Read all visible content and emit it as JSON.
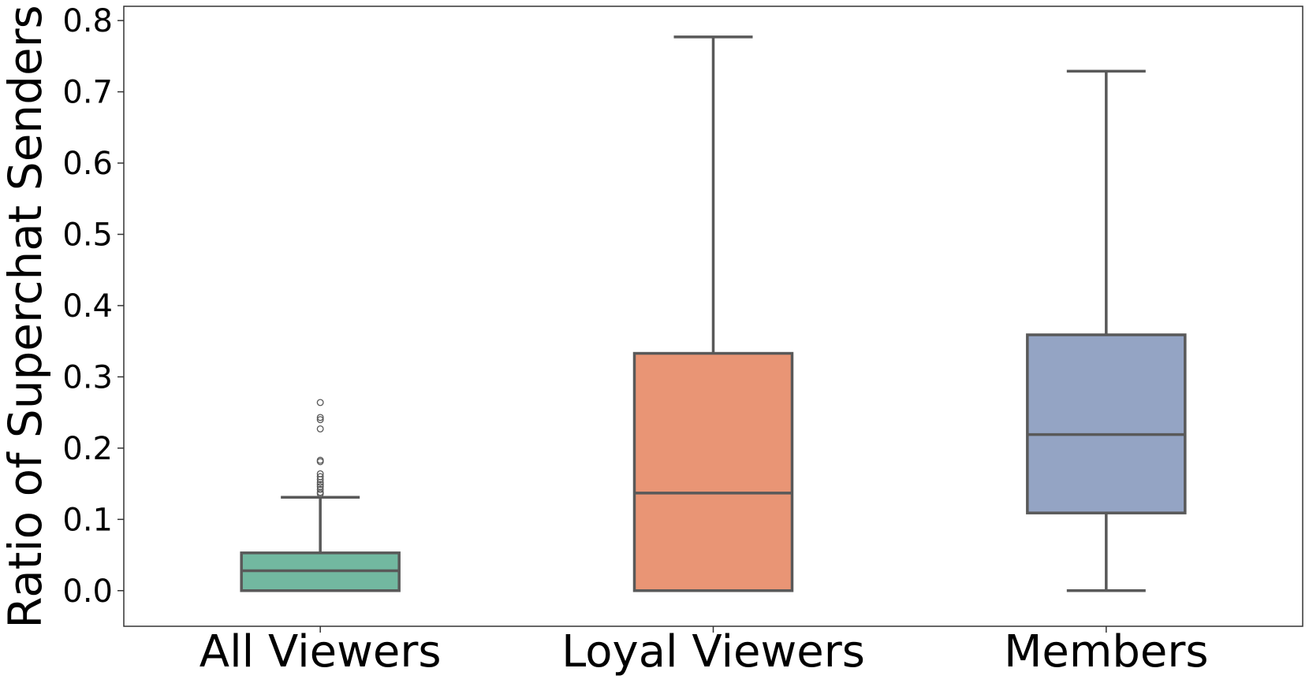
{
  "chart_data": {
    "type": "box",
    "title": "",
    "xlabel": "",
    "ylabel": "Ratio of Superchat Senders",
    "ylim": [
      -0.05,
      0.82
    ],
    "yticks": [
      "0.0",
      "0.1",
      "0.2",
      "0.3",
      "0.4",
      "0.5",
      "0.6",
      "0.7",
      "0.8"
    ],
    "grid": false,
    "categories": [
      "All Viewers",
      "Loyal Viewers",
      "Members"
    ],
    "boxes": [
      {
        "category": "All Viewers",
        "color": "#72b8a0",
        "whisker_low": 0.0,
        "q1": 0.0,
        "median": 0.028,
        "q3": 0.053,
        "whisker_high": 0.131,
        "outliers": [
          0.136,
          0.138,
          0.142,
          0.146,
          0.149,
          0.152,
          0.156,
          0.16,
          0.164,
          0.181,
          0.183,
          0.227,
          0.24,
          0.243,
          0.264
        ]
      },
      {
        "category": "Loyal Viewers",
        "color": "#e99575",
        "whisker_low": 0.0,
        "q1": 0.0,
        "median": 0.137,
        "q3": 0.333,
        "whisker_high": 0.777,
        "outliers": []
      },
      {
        "category": "Members",
        "color": "#94a4c4",
        "whisker_low": 0.0,
        "q1": 0.109,
        "median": 0.219,
        "q3": 0.359,
        "whisker_high": 0.729,
        "outliers": []
      }
    ],
    "line_color": "#595959"
  }
}
